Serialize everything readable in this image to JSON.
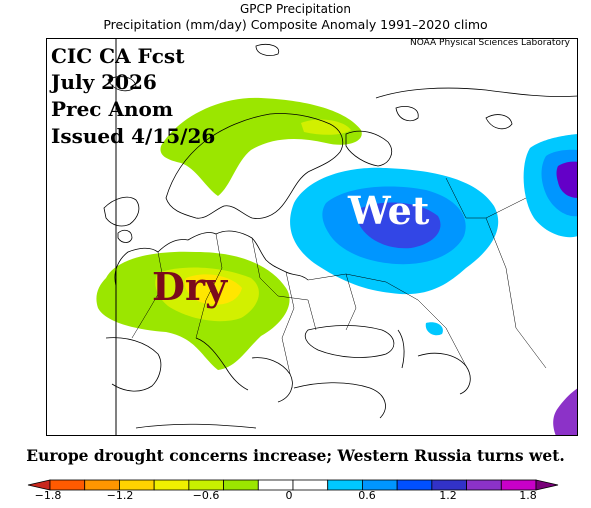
{
  "header": {
    "line1": "GPCP Precipitation",
    "line2": "Precipitation (mm/day) Composite Anomaly 1991–2020 climo"
  },
  "map": {
    "credit": "NOAA Physical Sciences Laboratory",
    "overlay_lines": [
      "CIC CA Fcst",
      "July 2026",
      "Prec Anom",
      "Issued 4/15/26"
    ],
    "wet_label": "Wet",
    "dry_label": "Dry",
    "caption": "Europe drought concerns increase; Western Russia turns wet.",
    "colors": {
      "wet_light": "#00c8ff",
      "wet_mid": "#0096ff",
      "wet_dark": "#3246e6",
      "wet_deepest": "#6400c8",
      "dry_light": "#9be600",
      "dry_mid": "#d2f000",
      "dry_dark": "#ffe600",
      "coast": "#000000"
    }
  },
  "colorbar": {
    "ticks": [
      "−1.8",
      "−1.2",
      "−0.6",
      "0",
      "0.6",
      "1.2",
      "1.8"
    ],
    "colors": [
      "#c8281e",
      "#ff5a00",
      "#ff9600",
      "#ffd200",
      "#f0f000",
      "#c8f000",
      "#9be600",
      "#ffffff",
      "#ffffff",
      "#00c8ff",
      "#0096ff",
      "#0050ff",
      "#3232c8",
      "#8c32c8",
      "#c800c8",
      "#780078"
    ]
  }
}
